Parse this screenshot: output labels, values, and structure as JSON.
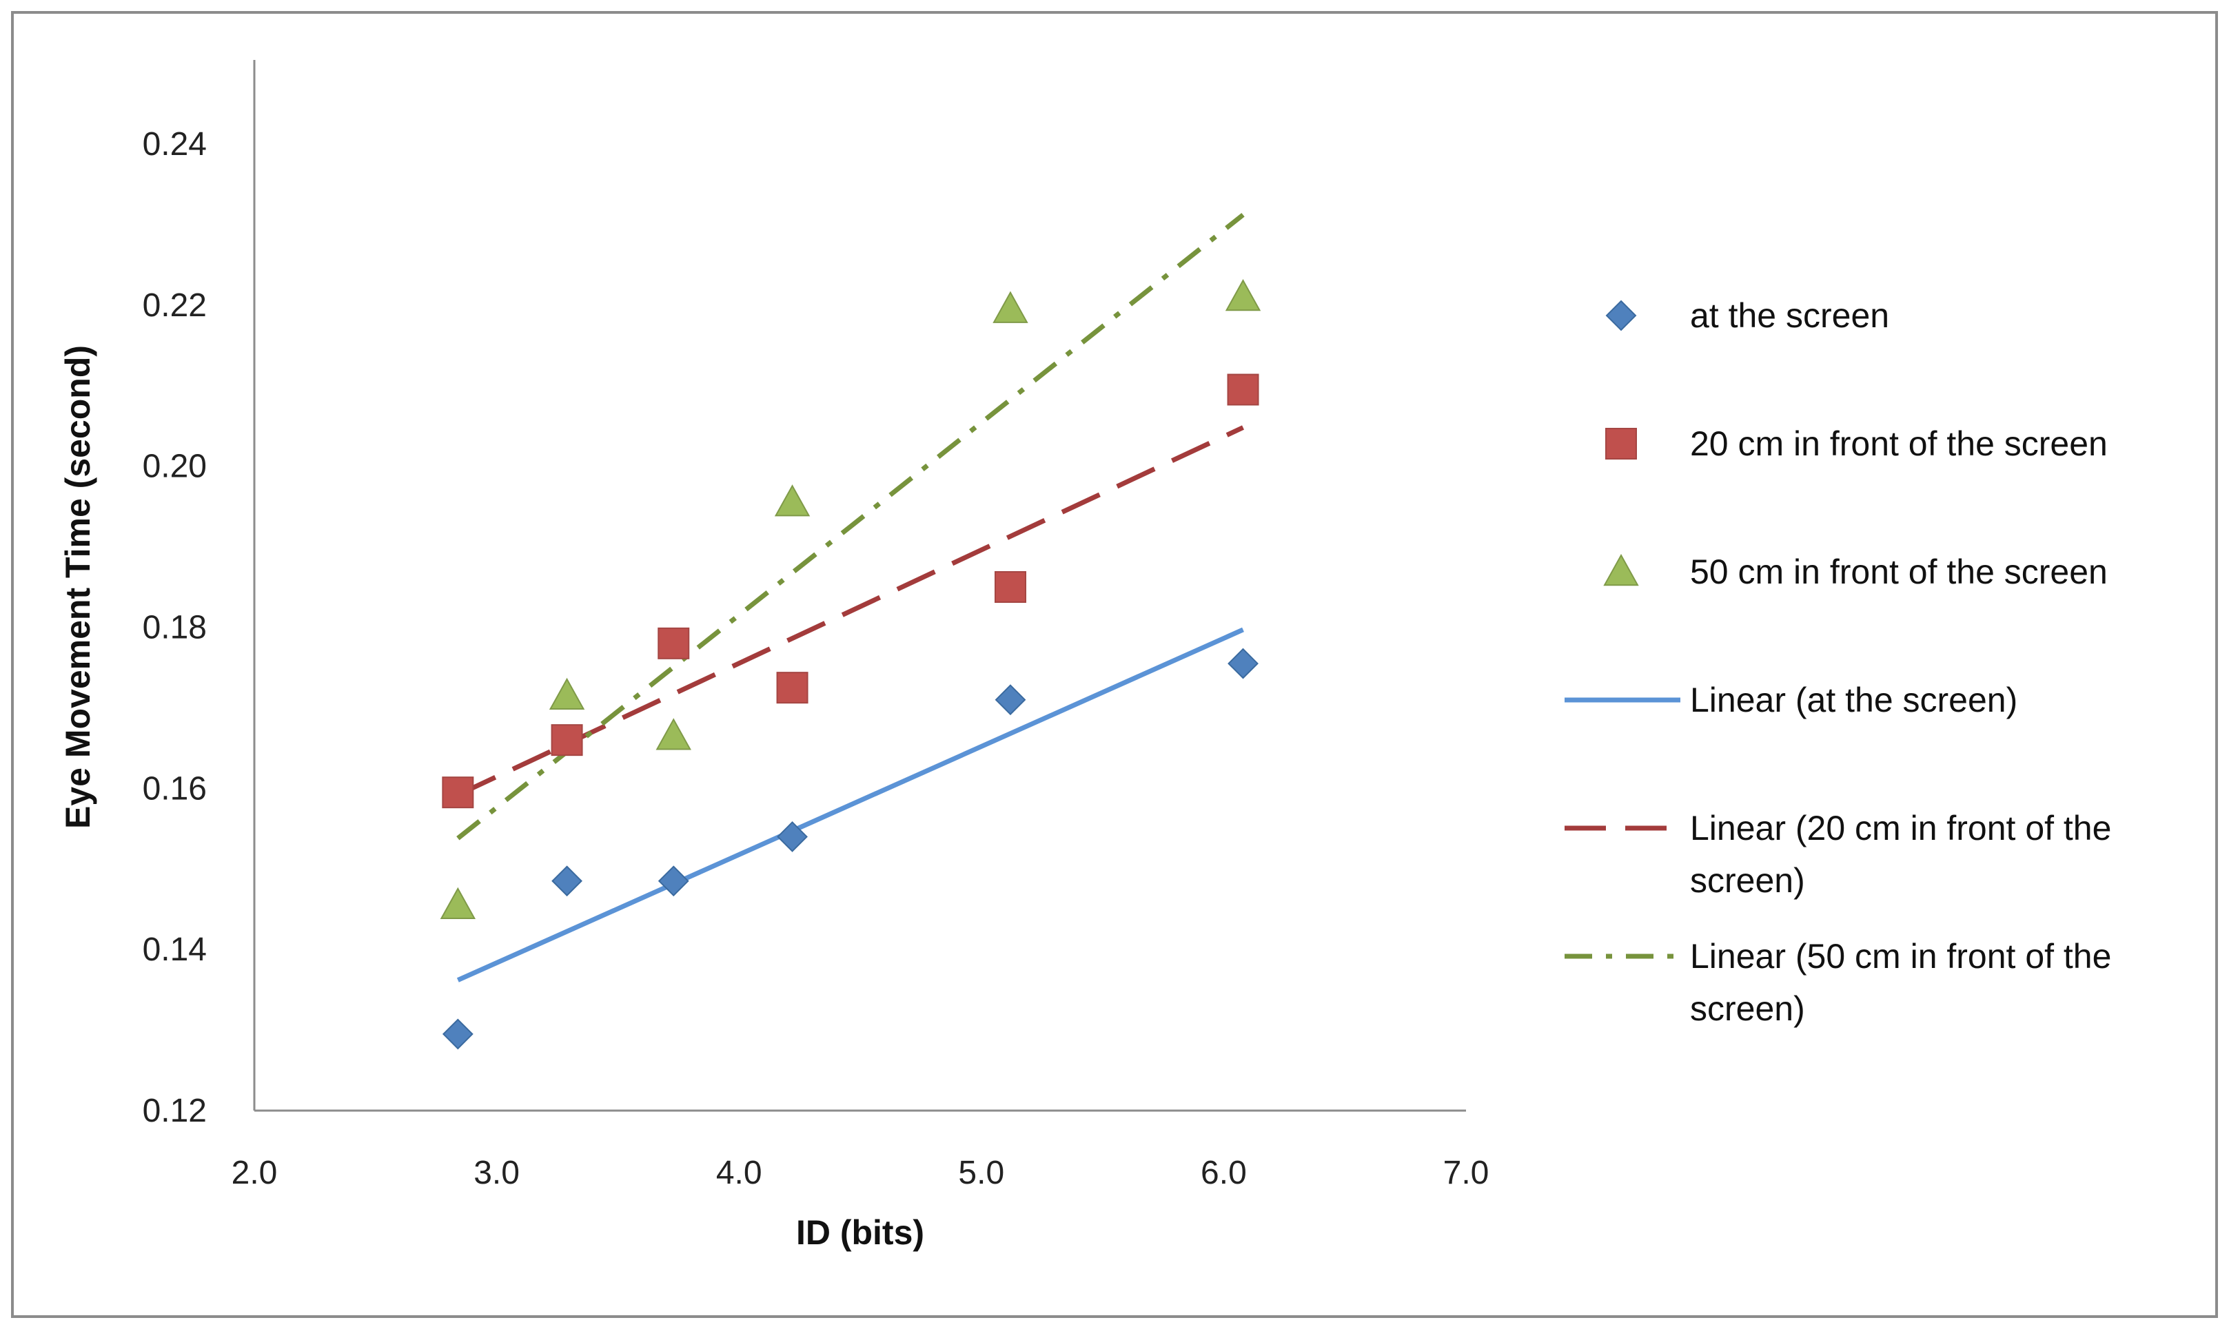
{
  "chart_data": {
    "type": "scatter",
    "xlabel": "ID (bits)",
    "ylabel": "Eye Movement Time (second)",
    "xlim": [
      2.0,
      7.0
    ],
    "ylim": [
      0.12,
      0.25
    ],
    "x_ticks": [
      2.0,
      3.0,
      4.0,
      5.0,
      6.0,
      7.0
    ],
    "x_tick_labels": [
      "2.0",
      "3.0",
      "4.0",
      "5.0",
      "6.0",
      "7.0"
    ],
    "y_ticks": [
      0.12,
      0.14,
      0.16,
      0.18,
      0.2,
      0.22,
      0.24
    ],
    "y_tick_labels": [
      "0.12",
      "0.14",
      "0.16",
      "0.18",
      "0.20",
      "0.22",
      "0.24"
    ],
    "grid": false,
    "legend_position": "right",
    "series": [
      {
        "name": "at the screen",
        "marker": "diamond",
        "color": "#4F81BD",
        "x": [
          2.84,
          3.29,
          3.73,
          4.22,
          5.12,
          6.08
        ],
        "y": [
          0.1295,
          0.1485,
          0.1485,
          0.154,
          0.171,
          0.1755
        ],
        "trendline": {
          "label": "Linear (at the screen)",
          "style": "solid",
          "color": "#5B93D6",
          "x": [
            2.84,
            6.08
          ],
          "y": [
            0.1362,
            0.1797
          ]
        }
      },
      {
        "name": "20 cm in front of the screen",
        "marker": "square",
        "color": "#C0504D",
        "x": [
          2.84,
          3.29,
          3.73,
          4.22,
          5.12,
          6.08
        ],
        "y": [
          0.1595,
          0.166,
          0.178,
          0.1725,
          0.185,
          0.2095
        ],
        "trendline": {
          "label": "Linear (20 cm in front of the screen)",
          "style": "dashed",
          "color": "#A33B3B",
          "x": [
            2.84,
            6.08
          ],
          "y": [
            0.1592,
            0.2048
          ]
        }
      },
      {
        "name": "50 cm in front of the screen",
        "marker": "triangle",
        "color": "#9BBB59",
        "x": [
          2.84,
          3.29,
          3.73,
          4.22,
          5.12,
          6.08
        ],
        "y": [
          0.1455,
          0.1715,
          0.1665,
          0.1955,
          0.2195,
          0.221
        ],
        "trendline": {
          "label": "Linear (50 cm in front of the screen)",
          "style": "dashdot",
          "color": "#77933C",
          "x": [
            2.84,
            6.08
          ],
          "y": [
            0.1538,
            0.2312
          ]
        }
      }
    ],
    "legend": [
      {
        "kind": "marker",
        "series": 0,
        "lines": [
          "at the screen"
        ]
      },
      {
        "kind": "marker",
        "series": 1,
        "lines": [
          "20 cm in front of the screen"
        ]
      },
      {
        "kind": "marker",
        "series": 2,
        "lines": [
          "50 cm in front of the screen"
        ]
      },
      {
        "kind": "line",
        "series": 0,
        "lines": [
          "Linear (at the screen)"
        ]
      },
      {
        "kind": "line",
        "series": 1,
        "lines": [
          "Linear (20 cm in front of the",
          "screen)"
        ]
      },
      {
        "kind": "line",
        "series": 2,
        "lines": [
          "Linear (50 cm in front of the",
          "screen)"
        ]
      }
    ]
  }
}
